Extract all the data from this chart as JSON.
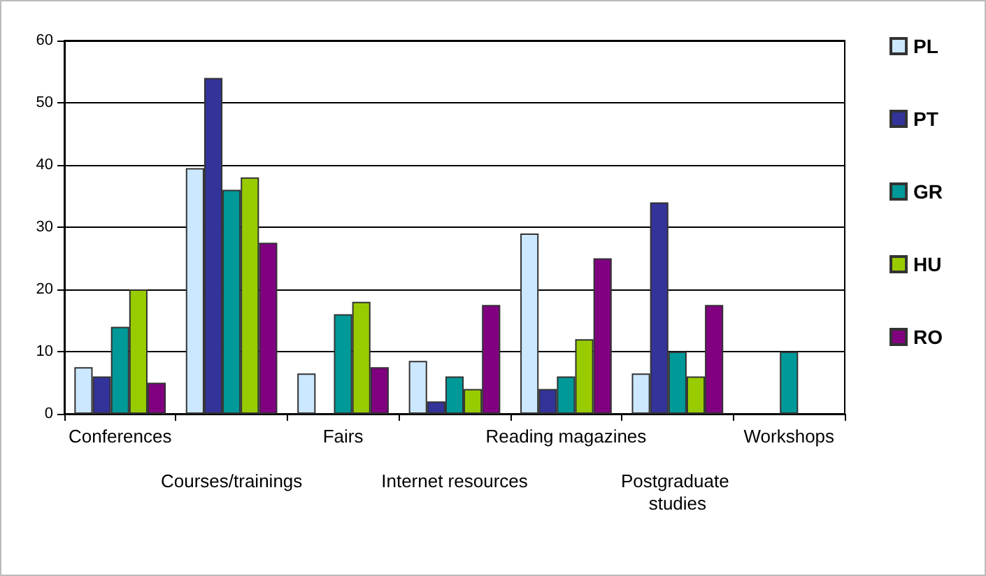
{
  "chart_data": {
    "type": "bar",
    "categories": [
      "Conferences",
      "Courses/trainings",
      "Fairs",
      "Internet resources",
      "Reading magazines",
      "Postgraduate studies",
      "Workshops"
    ],
    "series": [
      {
        "name": "PL",
        "color": "#cce8ff",
        "values": [
          7.5,
          39.5,
          6.5,
          8.5,
          29,
          6.5,
          null
        ]
      },
      {
        "name": "PT",
        "color": "#333399",
        "values": [
          6,
          54,
          null,
          2,
          4,
          34,
          null
        ]
      },
      {
        "name": "GR",
        "color": "#009999",
        "values": [
          14,
          36,
          16,
          6,
          6,
          10,
          10
        ]
      },
      {
        "name": "HU",
        "color": "#99cc00",
        "values": [
          20,
          38,
          18,
          4,
          12,
          6,
          null
        ]
      },
      {
        "name": "RO",
        "color": "#800080",
        "values": [
          5,
          27.5,
          7.5,
          17.5,
          25,
          17.5,
          null
        ]
      }
    ],
    "ylim": [
      0,
      60
    ],
    "yticks": [
      0,
      10,
      20,
      30,
      40,
      50,
      60
    ],
    "grid": "y",
    "legend": "right"
  }
}
